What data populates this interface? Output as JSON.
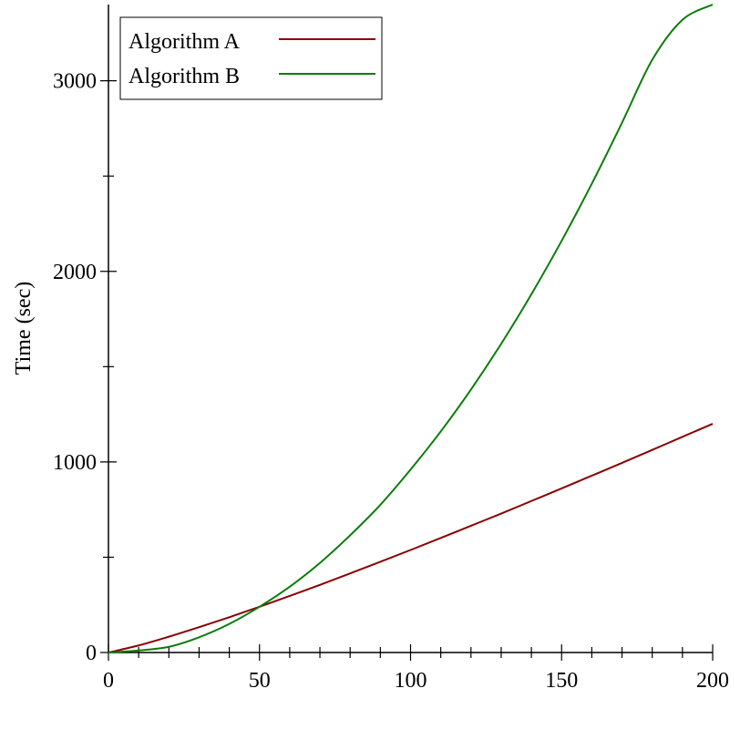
{
  "chart_data": {
    "type": "line",
    "xlabel": "",
    "ylabel": "Time (sec)",
    "xlim": [
      0,
      200
    ],
    "ylim": [
      0,
      3400
    ],
    "x_ticks": [
      0,
      50,
      100,
      150,
      200
    ],
    "y_ticks": [
      0,
      1000,
      2000,
      3000
    ],
    "x_tick_labels": [
      "0",
      "50",
      "100",
      "150",
      "200"
    ],
    "y_tick_labels": [
      "0",
      "1000",
      "2000",
      "3000"
    ],
    "grid": false,
    "legend_position": "top-left",
    "series": [
      {
        "name": "Algorithm A",
        "color": "#8b0000",
        "x": [
          0,
          10,
          20,
          30,
          40,
          50,
          60,
          70,
          80,
          90,
          100,
          110,
          120,
          130,
          140,
          150,
          160,
          170,
          180,
          190,
          200
        ],
        "values": [
          0,
          37,
          83,
          133,
          185,
          240,
          297,
          355,
          415,
          476,
          538,
          601,
          665,
          729,
          795,
          861,
          928,
          995,
          1063,
          1132,
          1200
        ]
      },
      {
        "name": "Algorithm B",
        "color": "#0a7d0a",
        "x": [
          0,
          10,
          20,
          30,
          40,
          50,
          60,
          70,
          80,
          90,
          100,
          110,
          120,
          130,
          140,
          150,
          160,
          170,
          180,
          190,
          200
        ],
        "values": [
          0,
          11,
          30,
          80,
          150,
          240,
          345,
          470,
          615,
          775,
          960,
          1160,
          1380,
          1620,
          1880,
          2160,
          2460,
          2780,
          3110,
          3320,
          3400
        ]
      }
    ]
  }
}
